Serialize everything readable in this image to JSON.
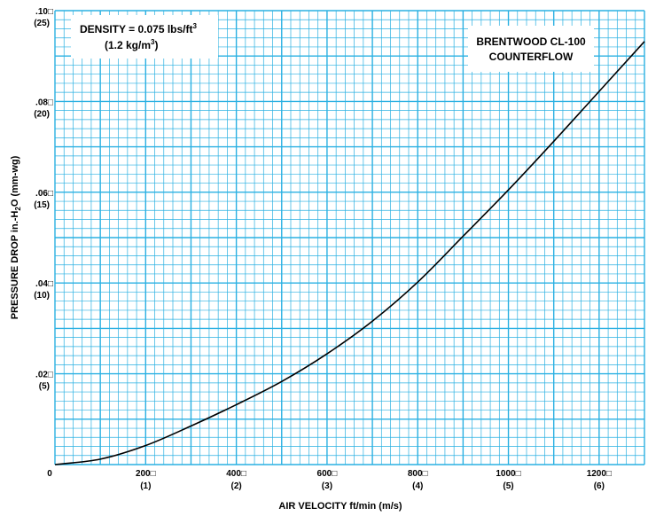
{
  "chart_data": {
    "type": "line",
    "xlabel": "AIR VELOCITY ft/min (m/s)",
    "ylabel_main": "PRESSURE DROP in.-H",
    "ylabel_sub": "2",
    "ylabel_tail": "O (mm-wg)",
    "xlim": [
      0,
      1300
    ],
    "ylim": [
      0,
      0.1
    ],
    "grid": true,
    "grid_color": "#2ab0e2",
    "line_color": "#000000",
    "x_ticks": [
      {
        "value": 0,
        "label": "0",
        "sub": ""
      },
      {
        "value": 200,
        "label": "200□",
        "sub": "(1)"
      },
      {
        "value": 400,
        "label": "400□",
        "sub": "(2)"
      },
      {
        "value": 600,
        "label": "600□",
        "sub": "(3)"
      },
      {
        "value": 800,
        "label": "800□",
        "sub": "(4)"
      },
      {
        "value": 1000,
        "label": "1000□",
        "sub": "(5)"
      },
      {
        "value": 1200,
        "label": "1200□",
        "sub": "(6)"
      }
    ],
    "y_ticks": [
      {
        "value": 0.02,
        "label": ".02□",
        "sub": "(5)"
      },
      {
        "value": 0.04,
        "label": ".04□",
        "sub": "(10)"
      },
      {
        "value": 0.06,
        "label": ".06□",
        "sub": "(15)"
      },
      {
        "value": 0.08,
        "label": ".08□",
        "sub": "(20)"
      },
      {
        "value": 0.1,
        "label": ".10□",
        "sub": "(25)"
      }
    ],
    "series": [
      {
        "x": [
          0,
          100,
          200,
          300,
          400,
          500,
          600,
          700,
          800,
          900,
          1000,
          1100,
          1200,
          1300
        ],
        "y": [
          0.0,
          0.0012,
          0.0042,
          0.0085,
          0.0132,
          0.0183,
          0.0244,
          0.0316,
          0.0402,
          0.0503,
          0.0605,
          0.0712,
          0.0822,
          0.0932
        ]
      }
    ],
    "annotations": {
      "density": {
        "line1": "DENSITY = 0.075 lbs/ft",
        "line1_sup": "3",
        "line2": "(1.2 kg/m",
        "line2_sup": "3",
        "line2_end": ")"
      },
      "product": {
        "line1": "BRENTWOOD CL-100",
        "line2": "COUNTERFLOW"
      }
    }
  }
}
